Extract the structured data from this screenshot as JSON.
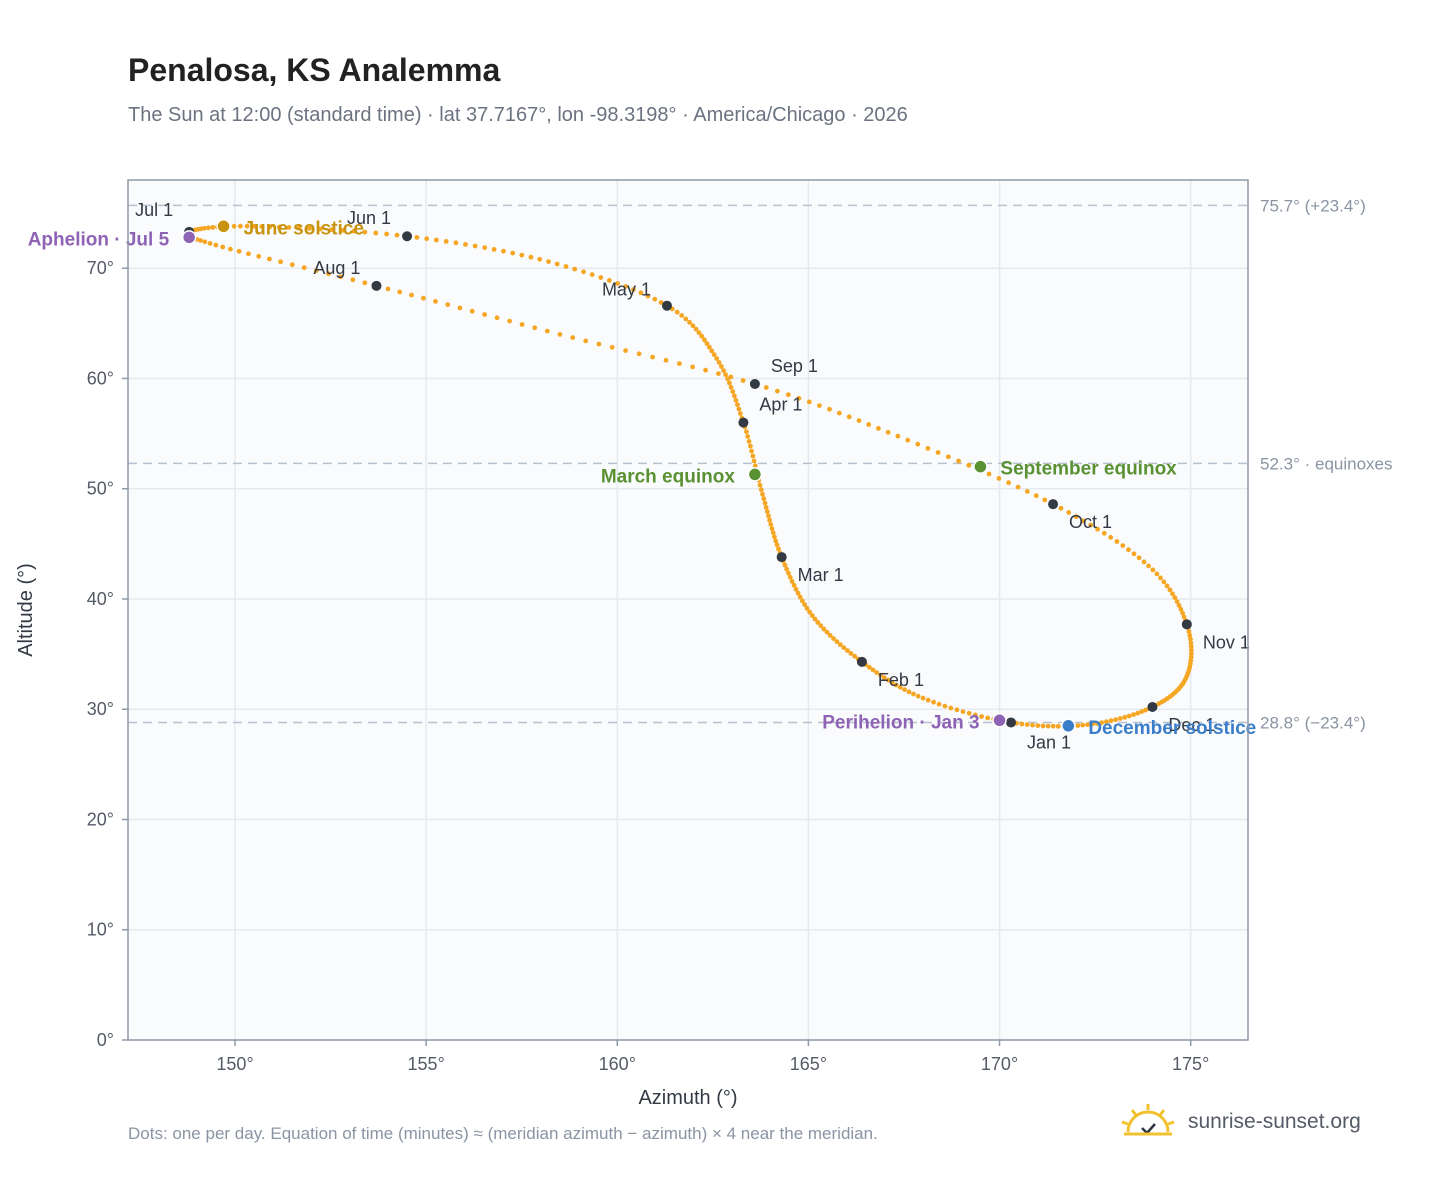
{
  "header": {
    "title": "Penalosa, KS Analemma",
    "subtitle": "The Sun at 12:00 (standard time) · lat 37.7167°, lon -98.3198° · America/Chicago · 2026"
  },
  "footer": {
    "note": "Dots: one per day. Equation of time (minutes) ≈ (meridian azimuth − azimuth) × 4 near the meridian.",
    "brand": "sunrise-sunset.org"
  },
  "colors": {
    "path": "#f5a623",
    "month_marker": "#333a44",
    "solstice_june": "#c8930e",
    "solstice_december": "#3a7dc9",
    "equinox": "#5a9133",
    "perihelion_aphelion": "#8e63b5",
    "reference_line": "#b8c2cf",
    "axis": "#8f99a8",
    "grid": "#e5eaf0",
    "plot_bg": "#f9fbfd"
  },
  "chart_data": {
    "type": "scatter",
    "xlabel": "Azimuth (°)",
    "ylabel": "Altitude (°)",
    "xlim": [
      147.2,
      176.5
    ],
    "ylim": [
      0,
      78
    ],
    "x_ticks": [
      150,
      155,
      160,
      165,
      170,
      175
    ],
    "x_tick_labels": [
      "150°",
      "155°",
      "160°",
      "165°",
      "170°",
      "175°"
    ],
    "y_ticks": [
      0,
      10,
      20,
      30,
      40,
      50,
      60,
      70
    ],
    "y_tick_labels": [
      "0°",
      "10°",
      "20°",
      "30°",
      "40°",
      "50°",
      "60°",
      "70°"
    ],
    "grid": true,
    "reference_lines": [
      {
        "altitude": 75.7,
        "label": "75.7° (+23.4°)"
      },
      {
        "altitude": 52.3,
        "label": "52.3° · equinoxes"
      },
      {
        "altitude": 28.8,
        "label": "28.8° (−23.4°)"
      }
    ],
    "month_markers": [
      {
        "label": "Jan 1",
        "azimuth": 170.3,
        "altitude": 28.8
      },
      {
        "label": "Feb 1",
        "azimuth": 166.4,
        "altitude": 34.3
      },
      {
        "label": "Mar 1",
        "azimuth": 164.3,
        "altitude": 43.8
      },
      {
        "label": "Apr 1",
        "azimuth": 163.3,
        "altitude": 56.0
      },
      {
        "label": "May 1",
        "azimuth": 161.3,
        "altitude": 66.6
      },
      {
        "label": "Jun 1",
        "azimuth": 154.5,
        "altitude": 72.9
      },
      {
        "label": "Jul 1",
        "azimuth": 148.8,
        "altitude": 73.3
      },
      {
        "label": "Aug 1",
        "azimuth": 153.7,
        "altitude": 68.4
      },
      {
        "label": "Sep 1",
        "azimuth": 163.6,
        "altitude": 59.5
      },
      {
        "label": "Oct 1",
        "azimuth": 171.4,
        "altitude": 48.6
      },
      {
        "label": "Nov 1",
        "azimuth": 174.9,
        "altitude": 37.7
      },
      {
        "label": "Dec 1",
        "azimuth": 174.0,
        "altitude": 30.2
      }
    ],
    "events": [
      {
        "label": "June solstice",
        "azimuth": 149.7,
        "altitude": 73.8,
        "color": "#c8930e"
      },
      {
        "label": "December solstice",
        "azimuth": 171.8,
        "altitude": 28.5,
        "color": "#3a7dc9"
      },
      {
        "label": "March equinox",
        "azimuth": 163.6,
        "altitude": 51.3,
        "color": "#5a9133"
      },
      {
        "label": "September equinox",
        "azimuth": 169.5,
        "altitude": 52.0,
        "color": "#5a9133"
      },
      {
        "label": "Perihelion · Jan 3",
        "azimuth": 170.0,
        "altitude": 29.0,
        "color": "#8e63b5"
      },
      {
        "label": "Aphelion · Jul 5",
        "azimuth": 148.8,
        "altitude": 72.8,
        "color": "#8e63b5"
      }
    ],
    "path_waypoints": [
      {
        "azimuth": 170.3,
        "altitude": 28.8
      },
      {
        "azimuth": 168.0,
        "altitude": 31.0
      },
      {
        "azimuth": 166.4,
        "altitude": 34.3
      },
      {
        "azimuth": 165.1,
        "altitude": 38.5
      },
      {
        "azimuth": 164.3,
        "altitude": 43.8
      },
      {
        "azimuth": 163.8,
        "altitude": 49.5
      },
      {
        "azimuth": 163.3,
        "altitude": 56.0
      },
      {
        "azimuth": 162.6,
        "altitude": 61.8
      },
      {
        "azimuth": 161.3,
        "altitude": 66.6
      },
      {
        "azimuth": 158.2,
        "altitude": 70.6
      },
      {
        "azimuth": 154.5,
        "altitude": 72.9
      },
      {
        "azimuth": 150.5,
        "altitude": 73.8
      },
      {
        "azimuth": 148.8,
        "altitude": 73.3
      },
      {
        "azimuth": 149.5,
        "altitude": 72.1
      },
      {
        "azimuth": 153.7,
        "altitude": 68.4
      },
      {
        "azimuth": 158.5,
        "altitude": 64.0
      },
      {
        "azimuth": 163.6,
        "altitude": 59.5
      },
      {
        "azimuth": 167.6,
        "altitude": 54.4
      },
      {
        "azimuth": 171.4,
        "altitude": 48.6
      },
      {
        "azimuth": 173.9,
        "altitude": 43.0
      },
      {
        "azimuth": 174.9,
        "altitude": 37.7
      },
      {
        "azimuth": 174.9,
        "altitude": 33.0
      },
      {
        "azimuth": 174.0,
        "altitude": 30.2
      },
      {
        "azimuth": 172.3,
        "altitude": 28.6
      },
      {
        "azimuth": 170.3,
        "altitude": 28.8
      }
    ]
  }
}
